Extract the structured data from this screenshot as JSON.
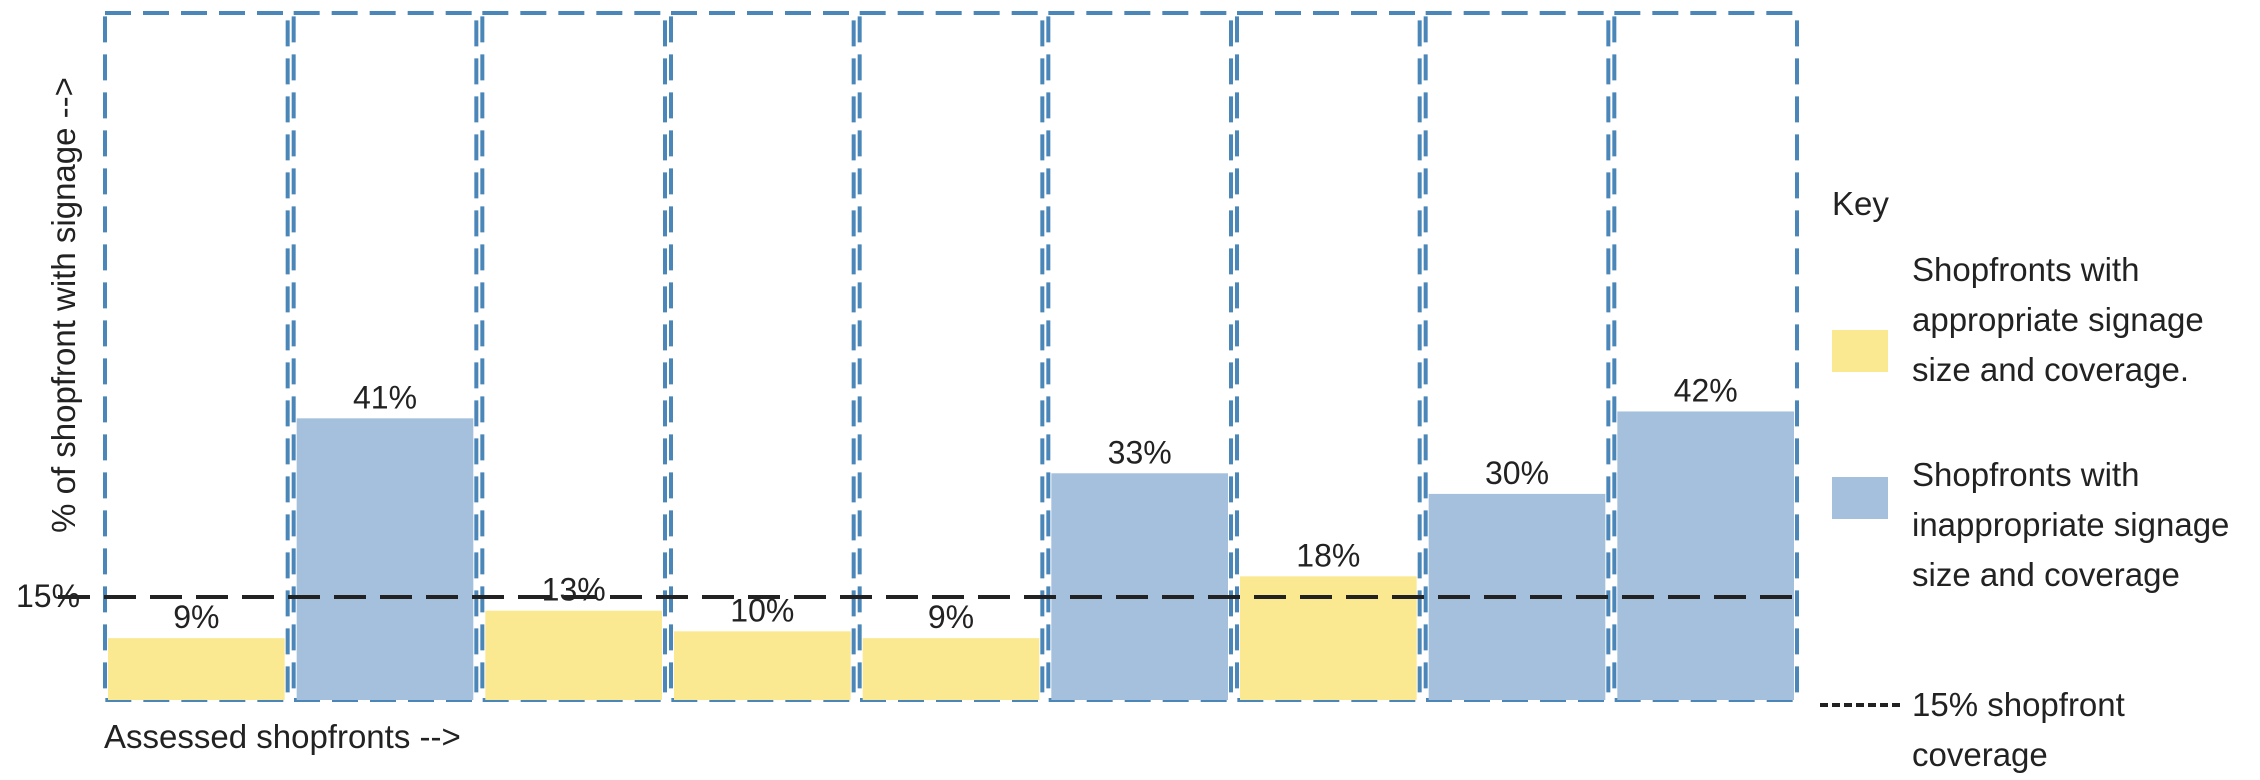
{
  "chart_data": {
    "type": "bar",
    "ylabel": "% of shopfront with signage -->",
    "xlabel": "Assessed shopfronts -->",
    "categories": [
      "",
      "",
      "",
      "",
      "",
      "",
      "",
      "",
      ""
    ],
    "values": [
      9,
      41,
      13,
      10,
      9,
      33,
      18,
      30,
      42
    ],
    "value_labels": [
      "9%",
      "41%",
      "13%",
      "10%",
      "9%",
      "33%",
      "18%",
      "30%",
      "42%"
    ],
    "bar_status": [
      "appropriate",
      "inappropriate",
      "appropriate",
      "appropriate",
      "appropriate",
      "inappropriate",
      "appropriate",
      "inappropriate",
      "inappropriate"
    ],
    "ylim": [
      0,
      100
    ],
    "threshold": {
      "value": 15,
      "label": "15%"
    },
    "colors": {
      "appropriate": "#fae991",
      "inappropriate": "#a4c0dc",
      "frame": "#4a86b8",
      "threshold": "#222222"
    },
    "grid": false,
    "legend_position": "right"
  },
  "legend": {
    "title": "Key",
    "items": [
      {
        "label": "Shopfronts with appropriate signage size and coverage.",
        "kind": "swatch",
        "color": "#fae991"
      },
      {
        "label": "Shopfronts with inappropriate signage size and coverage",
        "kind": "swatch",
        "color": "#a4c0dc"
      },
      {
        "label": "15% shopfront coverage",
        "kind": "dash"
      }
    ]
  }
}
